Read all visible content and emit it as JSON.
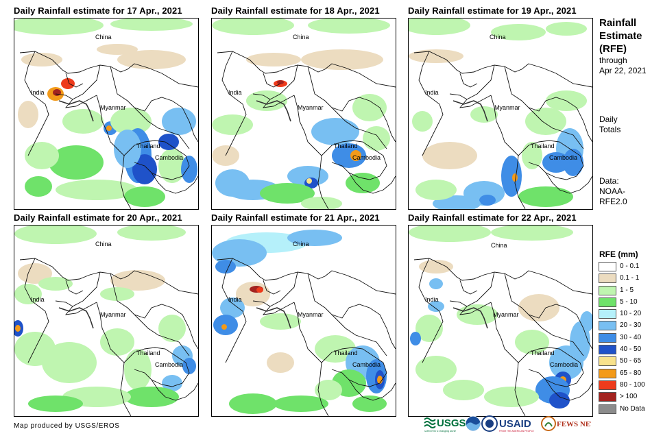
{
  "panels": [
    {
      "title": "Daily Rainfall estimate for 17 Apr., 2021",
      "labels": {
        "china": "China",
        "india": "India",
        "myanmar": "Myanmar",
        "thailand": "Thailand",
        "cambodia": "Cambodia"
      }
    },
    {
      "title": "Daily Rainfall estimate for 18 Apr., 2021",
      "labels": {
        "china": "China",
        "india": "India",
        "myanmar": "Myanmar",
        "thailand": "Thailand",
        "cambodia": "Cambodia"
      }
    },
    {
      "title": "Daily Rainfall estimate for 19 Apr., 2021",
      "labels": {
        "china": "China",
        "india": "India",
        "myanmar": "Myanmar",
        "thailand": "Thailand",
        "cambodia": "Cambodia"
      }
    },
    {
      "title": "Daily Rainfall estimate for 20 Apr., 2021",
      "labels": {
        "china": "China",
        "india": "India",
        "myanmar": "Myanmar",
        "thailand": "Thailand",
        "cambodia": "Cambodia"
      }
    },
    {
      "title": "Daily Rainfall estimate for 21 Apr., 2021",
      "labels": {
        "china": "China",
        "india": "India",
        "myanmar": "Myanmar",
        "thailand": "Thailand",
        "cambodia": "Cambodia"
      }
    },
    {
      "title": "Daily Rainfall estimate for 22 Apr., 2021",
      "labels": {
        "china": "China",
        "india": "India",
        "myanmar": "Myanmar",
        "thailand": "Thailand",
        "cambodia": "Cambodia"
      }
    }
  ],
  "sidebar": {
    "title_line1": "Rainfall",
    "title_line2": "Estimate",
    "title_line3": "(RFE)",
    "through_line1": "through",
    "through_line2": "Apr 22, 2021",
    "daily_line1": "Daily",
    "daily_line2": "Totals",
    "data_line1": "Data:",
    "data_line2": "NOAA-",
    "data_line3": "RFE2.0"
  },
  "legend": {
    "title": "RFE (mm)",
    "items": [
      {
        "label": "0 - 0.1",
        "color": "#ffffff"
      },
      {
        "label": "0.1 - 1",
        "color": "#ecdcc0"
      },
      {
        "label": "1 - 5",
        "color": "#bff5b0"
      },
      {
        "label": "5 - 10",
        "color": "#6fe26a"
      },
      {
        "label": "10 - 20",
        "color": "#b5f0fa"
      },
      {
        "label": "20 - 30",
        "color": "#78bff2"
      },
      {
        "label": "30 - 40",
        "color": "#3f8de6"
      },
      {
        "label": "40 - 50",
        "color": "#1f52c9"
      },
      {
        "label": "50 - 65",
        "color": "#f8e28c"
      },
      {
        "label": "65 - 80",
        "color": "#f39a19"
      },
      {
        "label": "80 - 100",
        "color": "#ee3b1c"
      },
      {
        "label": "> 100",
        "color": "#a3231f"
      },
      {
        "label": "No Data",
        "color": "#8c8c8c"
      }
    ]
  },
  "footer": {
    "credit": "Map produced by USGS/EROS"
  },
  "logos": {
    "usgs": "USGS",
    "usgs_tagline": "science for a changing world",
    "usaid": "USAID",
    "usaid_tagline": "FROM THE AMERICAN PEOPLE",
    "fewsnet": "FEWS NET"
  }
}
